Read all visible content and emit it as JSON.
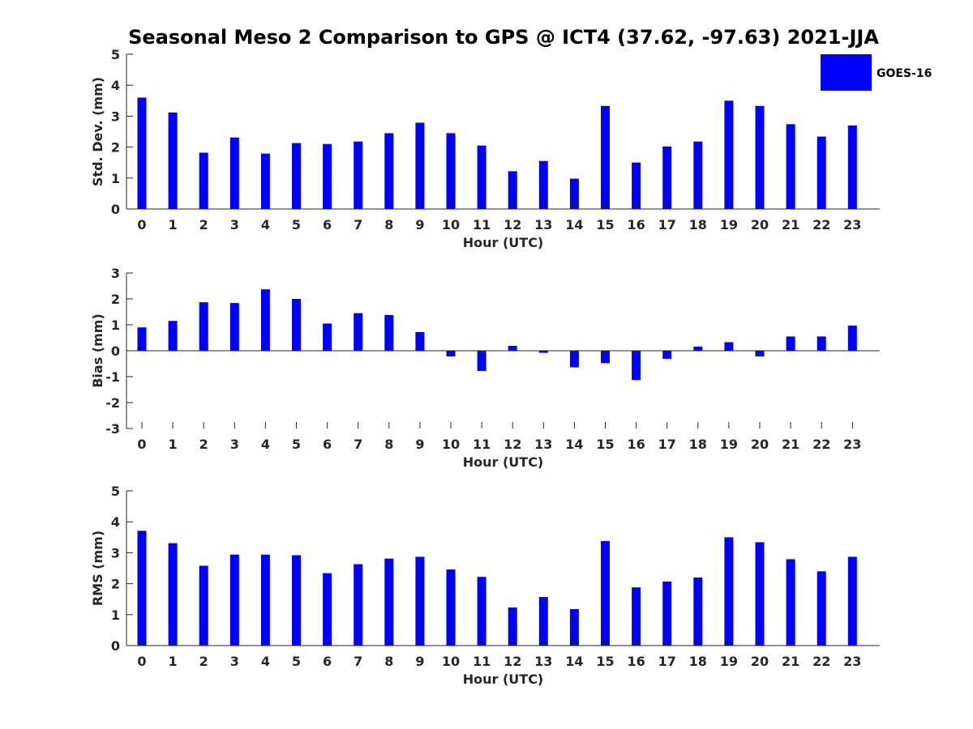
{
  "colors": {
    "bar": "#0000ff",
    "axis": "#262626",
    "background": "#ffffff"
  },
  "chart_data": {
    "title": "Seasonal Meso 2 Comparison to GPS @ ICT4 (37.62, -97.63) 2021-JJA",
    "legend": {
      "label": "GOES-16",
      "placement": "top-right"
    },
    "panels": [
      {
        "type": "bar",
        "name": "std-dev",
        "ylabel": "Std. Dev. (mm)",
        "xlabel": "Hour (UTC)",
        "ylim": [
          0,
          5
        ],
        "yticks": [
          "0",
          "1",
          "2",
          "3",
          "4",
          "5"
        ],
        "categories": [
          "0",
          "1",
          "2",
          "3",
          "4",
          "5",
          "6",
          "7",
          "8",
          "9",
          "10",
          "11",
          "12",
          "13",
          "14",
          "15",
          "16",
          "17",
          "18",
          "19",
          "20",
          "21",
          "22",
          "23"
        ],
        "series": [
          {
            "name": "GOES-16",
            "values": [
              3.6,
              3.12,
              1.82,
              2.31,
              1.79,
              2.13,
              2.1,
              2.18,
              2.45,
              2.79,
              2.45,
              2.05,
              1.22,
              1.55,
              0.98,
              3.33,
              1.5,
              2.02,
              2.18,
              3.5,
              3.33,
              2.74,
              2.34,
              2.7
            ]
          }
        ]
      },
      {
        "type": "bar",
        "name": "bias",
        "ylabel": "Bias (mm)",
        "xlabel": "Hour (UTC)",
        "ylim": [
          -3,
          3
        ],
        "yticks": [
          "-3",
          "-2",
          "-1",
          "0",
          "1",
          "2",
          "3"
        ],
        "categories": [
          "0",
          "1",
          "2",
          "3",
          "4",
          "5",
          "6",
          "7",
          "8",
          "9",
          "10",
          "11",
          "12",
          "13",
          "14",
          "15",
          "16",
          "17",
          "18",
          "19",
          "20",
          "21",
          "22",
          "23"
        ],
        "series": [
          {
            "name": "GOES-16",
            "values": [
              0.9,
              1.15,
              1.87,
              1.84,
              2.37,
              2.0,
              1.05,
              1.45,
              1.38,
              0.72,
              -0.22,
              -0.78,
              0.19,
              -0.08,
              -0.64,
              -0.48,
              -1.13,
              -0.31,
              0.16,
              0.33,
              -0.22,
              0.55,
              0.55,
              0.97
            ]
          }
        ]
      },
      {
        "type": "bar",
        "name": "rms",
        "ylabel": "RMS (mm)",
        "xlabel": "Hour (UTC)",
        "ylim": [
          0,
          5
        ],
        "yticks": [
          "0",
          "1",
          "2",
          "3",
          "4",
          "5"
        ],
        "categories": [
          "0",
          "1",
          "2",
          "3",
          "4",
          "5",
          "6",
          "7",
          "8",
          "9",
          "10",
          "11",
          "12",
          "13",
          "14",
          "15",
          "16",
          "17",
          "18",
          "19",
          "20",
          "21",
          "22",
          "23"
        ],
        "series": [
          {
            "name": "GOES-16",
            "values": [
              3.71,
              3.31,
              2.58,
              2.94,
              2.94,
              2.92,
              2.34,
              2.63,
              2.81,
              2.87,
              2.46,
              2.22,
              1.23,
              1.57,
              1.18,
              3.38,
              1.88,
              2.07,
              2.2,
              3.5,
              3.34,
              2.79,
              2.4,
              2.87
            ]
          }
        ]
      }
    ]
  }
}
